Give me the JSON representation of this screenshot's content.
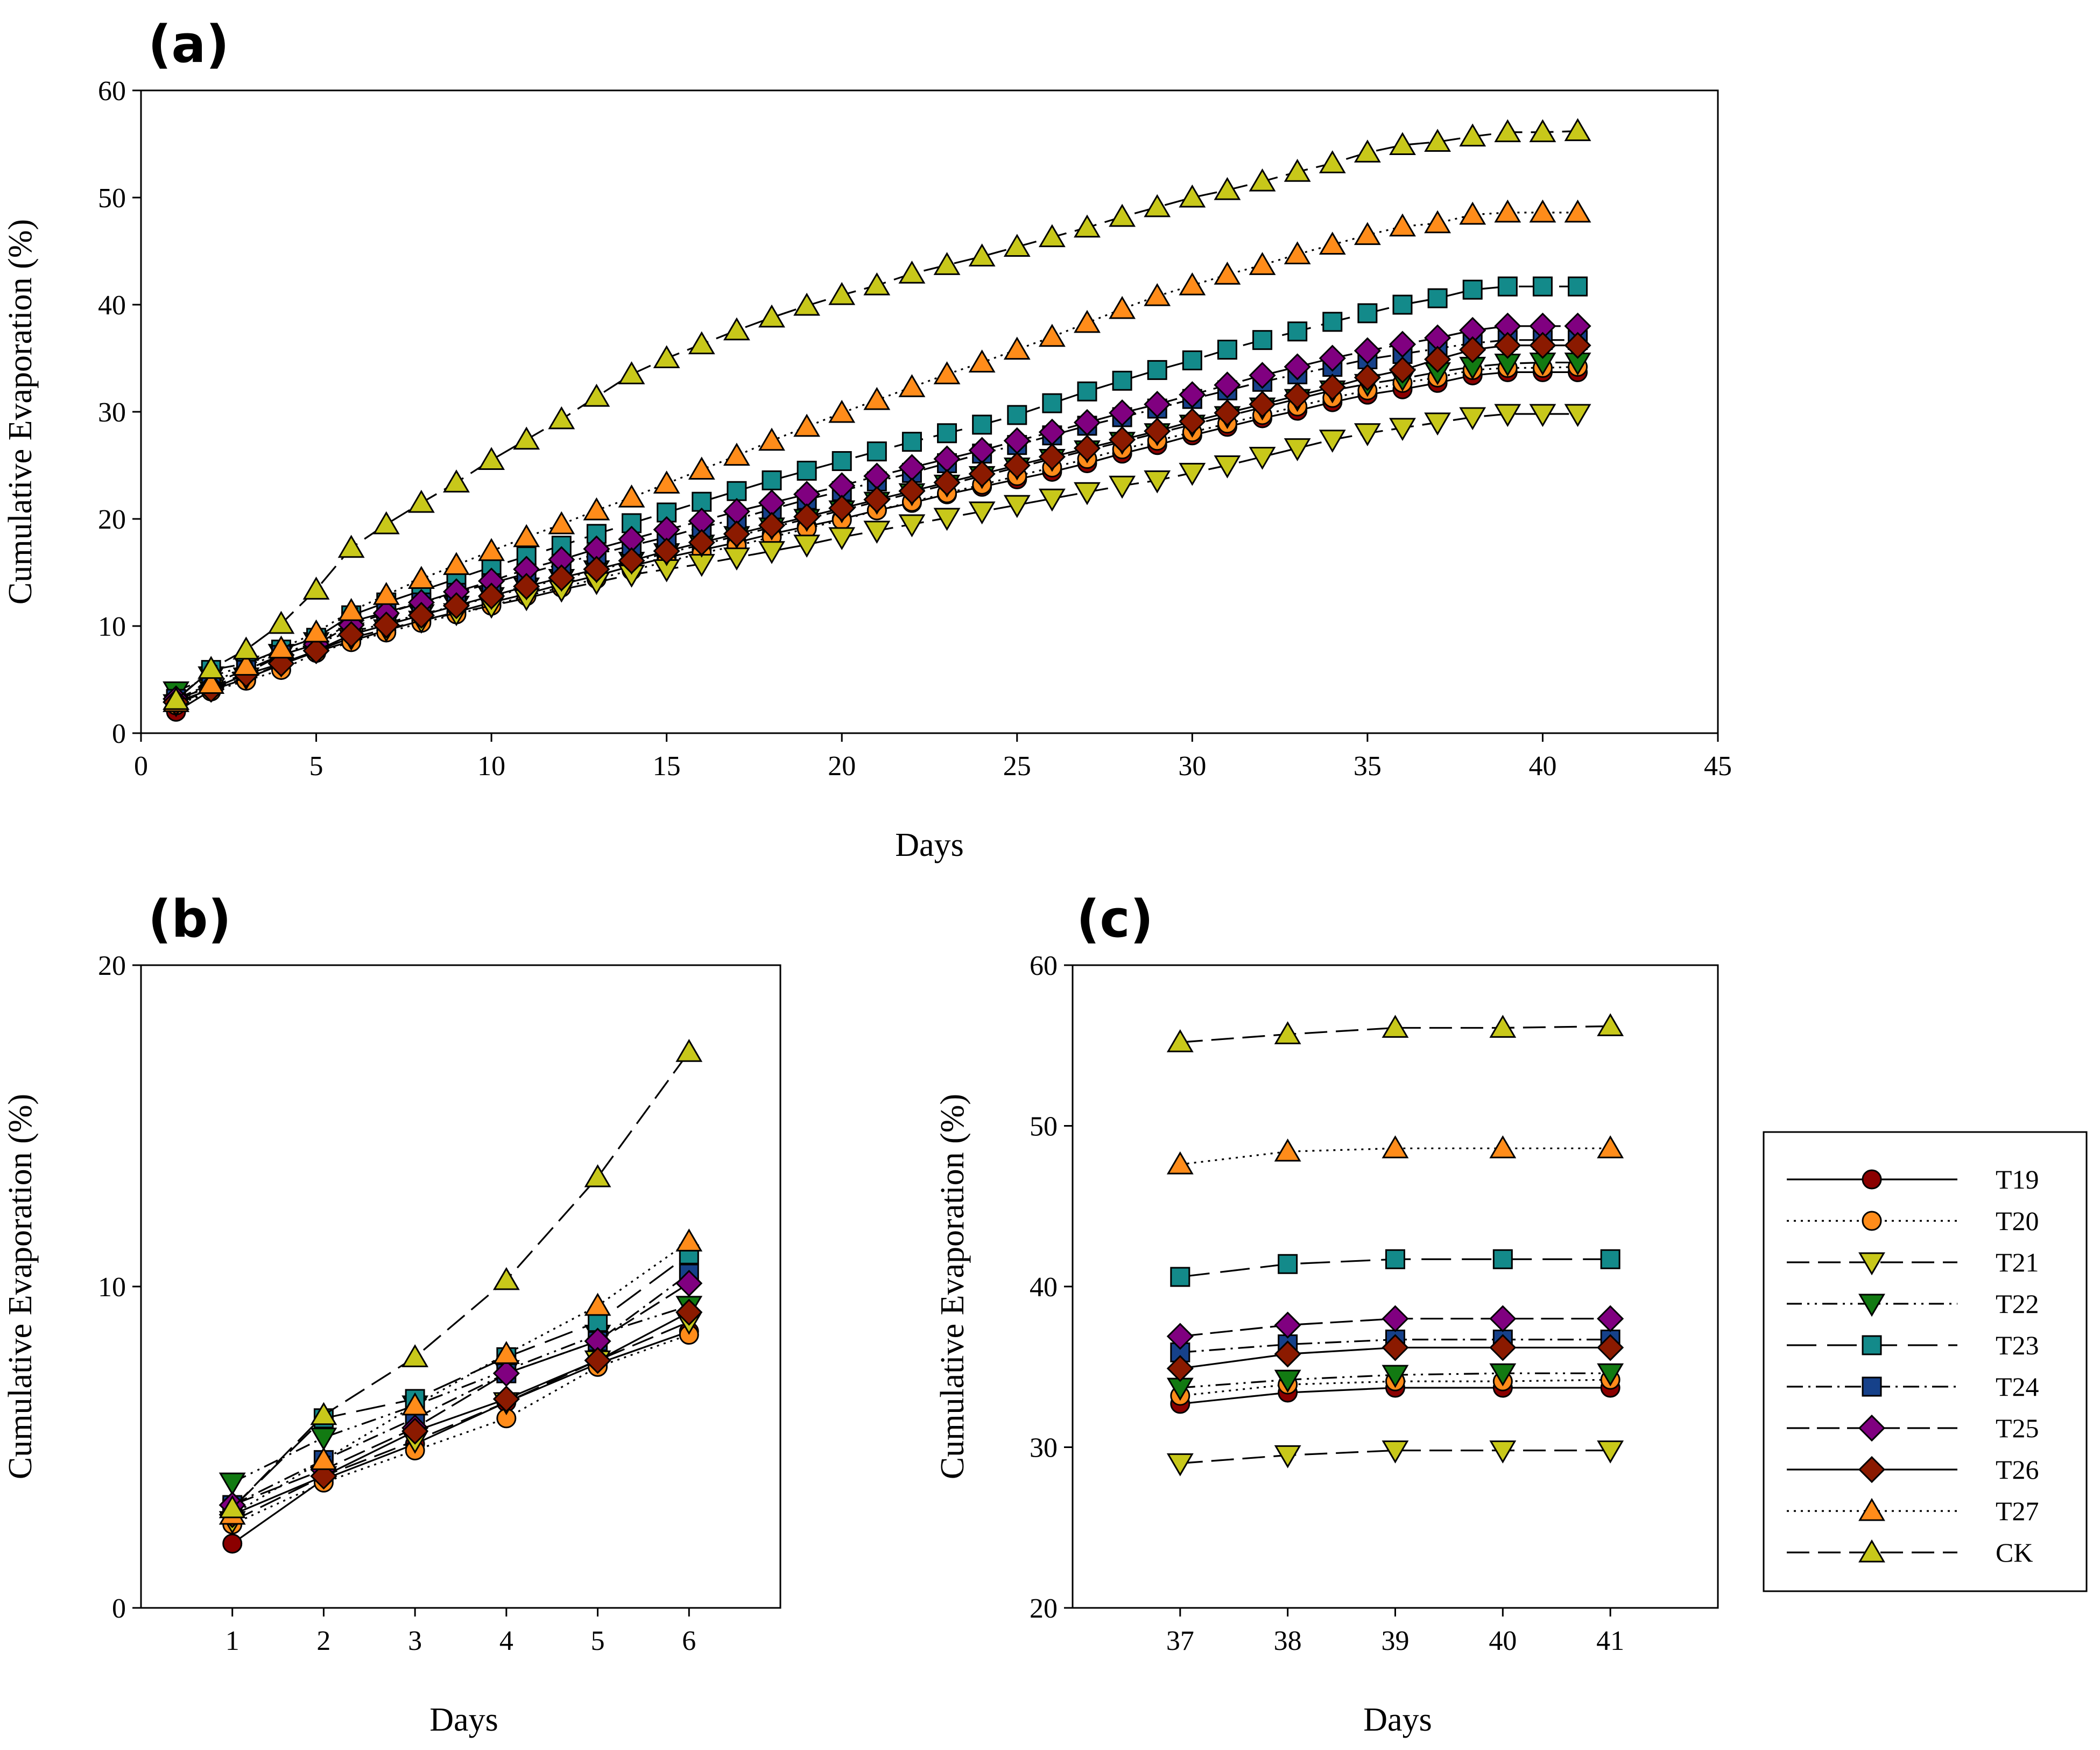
{
  "styles": [
    {
      "color": "#8B0000",
      "marker": "circle",
      "dash": ""
    },
    {
      "color": "#FF8C1A",
      "marker": "circle",
      "dash": "4,9"
    },
    {
      "color": "#C8C81A",
      "marker": "tri-down",
      "dash": "42,16"
    },
    {
      "color": "#127A12",
      "marker": "tri-down",
      "dash": "28,10,4,10,4,10"
    },
    {
      "color": "#138A8A",
      "marker": "square",
      "dash": "55,20"
    },
    {
      "color": "#16418A",
      "marker": "square",
      "dash": "30,10,4,10"
    },
    {
      "color": "#800080",
      "marker": "diamond",
      "dash": "42,14"
    },
    {
      "color": "#8B1A00",
      "marker": "diamond",
      "dash": ""
    },
    {
      "color": "#FF8C1A",
      "marker": "tri-up",
      "dash": "4,9"
    },
    {
      "color": "#C8C81A",
      "marker": "tri-up",
      "dash": "42,16"
    }
  ],
  "legend": {
    "entries": [
      "T19",
      "T20",
      "T21",
      "T22",
      "T23",
      "T24",
      "T25",
      "T26",
      "T27",
      "CK"
    ]
  },
  "chart_data": [
    {
      "panel": "(a)",
      "type": "line",
      "xlabel": "Days",
      "ylabel": "Cumulative Evaporation (%)",
      "xlim": [
        0,
        45
      ],
      "ylim": [
        0,
        60
      ],
      "xticks": [
        0,
        5,
        10,
        15,
        20,
        25,
        30,
        35,
        40,
        45
      ],
      "yticks": [
        0,
        10,
        20,
        30,
        40,
        50,
        60
      ],
      "x": [
        1,
        2,
        3,
        4,
        5,
        6,
        7,
        8,
        9,
        10,
        11,
        12,
        13,
        14,
        15,
        16,
        17,
        18,
        19,
        20,
        21,
        22,
        23,
        24,
        25,
        26,
        27,
        28,
        29,
        30,
        31,
        32,
        33,
        34,
        35,
        36,
        37,
        38,
        39,
        40,
        41
      ],
      "series": [
        {
          "name": "T19",
          "values": [
            2.0,
            4.0,
            5.1,
            6.4,
            7.6,
            8.6,
            9.6,
            10.5,
            11.3,
            12.2,
            13.0,
            13.9,
            14.7,
            15.6,
            16.4,
            17.1,
            17.8,
            18.6,
            19.3,
            20.0,
            20.8,
            21.5,
            22.3,
            23.0,
            23.7,
            24.4,
            25.2,
            26.1,
            26.9,
            27.8,
            28.6,
            29.4,
            30.1,
            30.9,
            31.6,
            32.1,
            32.7,
            33.4,
            33.7,
            33.7,
            33.7
          ]
        },
        {
          "name": "T20",
          "values": [
            2.6,
            3.9,
            4.9,
            5.9,
            7.5,
            8.5,
            9.4,
            10.3,
            11.1,
            11.9,
            12.8,
            13.6,
            14.4,
            15.2,
            16.0,
            16.8,
            17.5,
            18.3,
            19.1,
            19.9,
            20.8,
            21.6,
            22.4,
            23.2,
            24.0,
            24.8,
            25.6,
            26.5,
            27.3,
            28.1,
            28.9,
            29.7,
            30.5,
            31.3,
            32.0,
            32.7,
            33.2,
            33.9,
            34.1,
            34.1,
            34.2
          ]
        },
        {
          "name": "T21",
          "values": [
            2.7,
            4.1,
            5.2,
            6.4,
            7.7,
            8.9,
            9.7,
            10.5,
            11.2,
            11.9,
            12.6,
            13.4,
            14.1,
            14.8,
            15.3,
            15.8,
            16.4,
            17.0,
            17.6,
            18.3,
            18.9,
            19.5,
            20.1,
            20.7,
            21.3,
            21.9,
            22.5,
            23.1,
            23.6,
            24.3,
            25.0,
            25.8,
            26.6,
            27.4,
            28.0,
            28.5,
            29.0,
            29.5,
            29.8,
            29.8,
            29.8
          ]
        },
        {
          "name": "T22",
          "values": [
            3.9,
            5.3,
            6.3,
            7.4,
            8.5,
            9.4,
            10.3,
            11.1,
            11.9,
            12.7,
            13.6,
            14.4,
            15.2,
            16.0,
            16.8,
            17.6,
            18.4,
            19.2,
            20.0,
            20.8,
            21.6,
            22.4,
            23.2,
            24.0,
            24.8,
            25.6,
            26.4,
            27.2,
            28.0,
            28.8,
            29.6,
            30.4,
            31.2,
            32.0,
            32.6,
            33.1,
            33.7,
            34.2,
            34.5,
            34.6,
            34.6
          ]
        },
        {
          "name": "T23",
          "values": [
            3.1,
            5.9,
            6.5,
            7.8,
            8.9,
            11.0,
            12.2,
            13.3,
            14.4,
            15.5,
            16.5,
            17.5,
            18.6,
            19.6,
            20.6,
            21.6,
            22.6,
            23.6,
            24.5,
            25.4,
            26.3,
            27.2,
            28.0,
            28.8,
            29.7,
            30.8,
            31.9,
            32.9,
            33.9,
            34.8,
            35.8,
            36.7,
            37.5,
            38.4,
            39.2,
            40.0,
            40.6,
            41.4,
            41.7,
            41.7,
            41.7
          ]
        },
        {
          "name": "T24",
          "values": [
            3.2,
            4.6,
            5.9,
            7.3,
            8.3,
            10.4,
            11.3,
            12.2,
            13.1,
            14.0,
            14.9,
            15.8,
            16.7,
            17.5,
            18.3,
            19.2,
            20.0,
            20.9,
            21.8,
            22.6,
            23.5,
            24.3,
            25.2,
            26.1,
            26.9,
            27.8,
            28.7,
            29.5,
            30.3,
            31.2,
            32.0,
            32.8,
            33.5,
            34.2,
            34.9,
            35.4,
            35.9,
            36.4,
            36.7,
            36.7,
            36.7
          ]
        },
        {
          "name": "T25",
          "values": [
            3.2,
            4.3,
            5.6,
            7.3,
            8.3,
            10.1,
            11.2,
            12.2,
            13.2,
            14.2,
            15.3,
            16.2,
            17.2,
            18.1,
            19.0,
            19.8,
            20.7,
            21.5,
            22.3,
            23.1,
            24.0,
            24.8,
            25.6,
            26.4,
            27.3,
            28.1,
            29.0,
            29.9,
            30.7,
            31.6,
            32.5,
            33.4,
            34.2,
            35.0,
            35.7,
            36.3,
            36.9,
            37.6,
            38.0,
            38.0,
            38.0
          ]
        },
        {
          "name": "T26",
          "values": [
            2.9,
            4.1,
            5.5,
            6.5,
            7.7,
            9.2,
            10.1,
            11.0,
            11.9,
            12.8,
            13.7,
            14.5,
            15.3,
            16.1,
            17.0,
            17.8,
            18.6,
            19.4,
            20.2,
            21.0,
            21.8,
            22.6,
            23.4,
            24.2,
            25.0,
            25.8,
            26.6,
            27.4,
            28.2,
            29.1,
            29.9,
            30.7,
            31.5,
            32.3,
            33.2,
            33.9,
            34.9,
            35.8,
            36.2,
            36.2,
            36.2
          ]
        },
        {
          "name": "T27",
          "values": [
            2.9,
            4.6,
            6.3,
            7.9,
            9.4,
            11.4,
            12.9,
            14.4,
            15.7,
            17.0,
            18.3,
            19.5,
            20.8,
            22.0,
            23.3,
            24.6,
            25.9,
            27.3,
            28.6,
            29.9,
            31.1,
            32.3,
            33.5,
            34.6,
            35.8,
            37.0,
            38.3,
            39.6,
            40.8,
            41.8,
            42.8,
            43.7,
            44.7,
            45.6,
            46.5,
            47.3,
            47.6,
            48.4,
            48.6,
            48.6,
            48.6
          ]
        },
        {
          "name": "CK",
          "values": [
            3.1,
            6.0,
            7.8,
            10.2,
            13.4,
            17.3,
            19.5,
            21.5,
            23.4,
            25.5,
            27.4,
            29.3,
            31.4,
            33.5,
            35.0,
            36.3,
            37.6,
            38.8,
            39.9,
            40.9,
            41.8,
            42.9,
            43.7,
            44.5,
            45.4,
            46.3,
            47.2,
            48.2,
            49.1,
            50.0,
            50.7,
            51.5,
            52.4,
            53.2,
            54.2,
            54.9,
            55.2,
            55.7,
            56.1,
            56.1,
            56.2
          ]
        }
      ]
    },
    {
      "panel": "(b)",
      "type": "line",
      "xlabel": "Days",
      "ylabel": "Cumulative Evaporation (%)",
      "xlim": [
        0,
        7
      ],
      "ylim": [
        0,
        20
      ],
      "xticks": [
        1,
        2,
        3,
        4,
        5,
        6
      ],
      "yticks": [
        0,
        10,
        20
      ],
      "x": [
        1,
        2,
        3,
        4,
        5,
        6
      ],
      "series": [
        {
          "name": "T19",
          "values": [
            2.0,
            4.0,
            5.1,
            6.4,
            7.6,
            8.6
          ]
        },
        {
          "name": "T20",
          "values": [
            2.6,
            3.9,
            4.9,
            5.9,
            7.5,
            8.5
          ]
        },
        {
          "name": "T21",
          "values": [
            2.7,
            4.1,
            5.2,
            6.4,
            7.7,
            8.9
          ]
        },
        {
          "name": "T22",
          "values": [
            3.9,
            5.3,
            6.3,
            7.4,
            8.5,
            9.4
          ]
        },
        {
          "name": "T23",
          "values": [
            3.1,
            5.9,
            6.5,
            7.8,
            8.9,
            11.0
          ]
        },
        {
          "name": "T24",
          "values": [
            3.2,
            4.6,
            5.9,
            7.3,
            8.3,
            10.4
          ]
        },
        {
          "name": "T25",
          "values": [
            3.2,
            4.3,
            5.6,
            7.3,
            8.3,
            10.1
          ]
        },
        {
          "name": "T26",
          "values": [
            2.9,
            4.1,
            5.5,
            6.5,
            7.7,
            9.2
          ]
        },
        {
          "name": "T27",
          "values": [
            2.9,
            4.6,
            6.3,
            7.9,
            9.4,
            11.4
          ]
        },
        {
          "name": "CK",
          "values": [
            3.1,
            6.0,
            7.8,
            10.2,
            13.4,
            17.3
          ]
        }
      ]
    },
    {
      "panel": "(c)",
      "type": "line",
      "xlabel": "Days",
      "ylabel": "Cumulative Evaporation (%)",
      "xlim": [
        36,
        42
      ],
      "ylim": [
        20,
        60
      ],
      "xticks": [
        37,
        38,
        39,
        40,
        41
      ],
      "yticks": [
        20,
        30,
        40,
        50,
        60
      ],
      "x": [
        37,
        38,
        39,
        40,
        41
      ],
      "series": [
        {
          "name": "T19",
          "values": [
            32.7,
            33.4,
            33.7,
            33.7,
            33.7
          ]
        },
        {
          "name": "T20",
          "values": [
            33.2,
            33.9,
            34.1,
            34.1,
            34.2
          ]
        },
        {
          "name": "T21",
          "values": [
            29.0,
            29.5,
            29.8,
            29.8,
            29.8
          ]
        },
        {
          "name": "T22",
          "values": [
            33.7,
            34.2,
            34.5,
            34.6,
            34.6
          ]
        },
        {
          "name": "T23",
          "values": [
            40.6,
            41.4,
            41.7,
            41.7,
            41.7
          ]
        },
        {
          "name": "T24",
          "values": [
            35.9,
            36.4,
            36.7,
            36.7,
            36.7
          ]
        },
        {
          "name": "T25",
          "values": [
            36.9,
            37.6,
            38.0,
            38.0,
            38.0
          ]
        },
        {
          "name": "T26",
          "values": [
            34.9,
            35.8,
            36.2,
            36.2,
            36.2
          ]
        },
        {
          "name": "T27",
          "values": [
            47.6,
            48.4,
            48.6,
            48.6,
            48.6
          ]
        },
        {
          "name": "CK",
          "values": [
            55.2,
            55.7,
            56.1,
            56.1,
            56.2
          ]
        }
      ]
    }
  ]
}
